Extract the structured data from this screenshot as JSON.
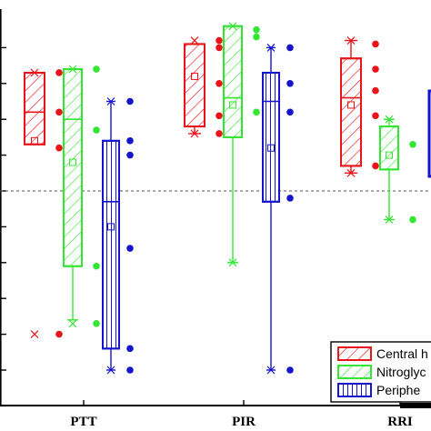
{
  "chart_data": {
    "type": "box",
    "categories": [
      "PTT",
      "PIR",
      "RRI"
    ],
    "reference_line": 0,
    "y_range": [
      -6,
      4.6
    ],
    "y_ticks": [
      -6,
      -5,
      -4,
      -3,
      -2,
      -1,
      0,
      1,
      2,
      3,
      4
    ],
    "grid": false,
    "legend_position": "bottom-right",
    "series": [
      {
        "name": "Central hypovolemia",
        "legend_label": "Central h",
        "color": "#e8141a",
        "hatch": "diagonal",
        "boxes": [
          {
            "category": "PTT",
            "q1": 1.3,
            "median": 2.2,
            "q3": 3.3,
            "mean": 1.4,
            "whisker_low": 1.3,
            "whisker_high": 3.3,
            "extremes": [
              3.3,
              -4.0
            ],
            "outliers": [
              3.3,
              2.2,
              1.2,
              -4.0
            ]
          },
          {
            "category": "PIR",
            "q1": 1.8,
            "median": null,
            "q3": 4.1,
            "mean": 3.2,
            "whisker_low": 1.6,
            "whisker_high": 4.1,
            "extremes": [
              4.2,
              1.6
            ],
            "outliers": [
              4.2,
              4.0,
              3.0,
              2.1,
              1.6
            ]
          },
          {
            "category": "RRI",
            "q1": 0.7,
            "median": 2.6,
            "q3": 3.7,
            "mean": 2.4,
            "whisker_low": 0.5,
            "whisker_high": 4.2,
            "extremes": [
              4.2,
              0.5
            ],
            "outliers": [
              4.1,
              3.4,
              2.8,
              2.1,
              0.7
            ]
          }
        ]
      },
      {
        "name": "Nitroglycerin",
        "legend_label": "Nitroglyc",
        "color": "#33e633",
        "hatch": "diagonal",
        "boxes": [
          {
            "category": "PTT",
            "q1": -2.1,
            "median": 2.0,
            "q3": 3.4,
            "mean": 0.8,
            "whisker_low": -3.6,
            "whisker_high": 3.4,
            "extremes": [
              3.4,
              -3.7
            ],
            "outliers": [
              3.4,
              1.7,
              -2.1,
              -3.7
            ]
          },
          {
            "category": "PIR",
            "q1": 1.5,
            "median": 2.6,
            "q3": 4.6,
            "mean": 2.4,
            "whisker_low": -2.0,
            "whisker_high": 4.6,
            "extremes": [
              4.6,
              -2.0
            ],
            "outliers": [
              4.5,
              4.3,
              2.2
            ]
          },
          {
            "category": "RRI",
            "q1": 0.6,
            "median": null,
            "q3": 1.8,
            "mean": 1.0,
            "whisker_low": -0.8,
            "whisker_high": 2.0,
            "extremes": [
              2.0,
              -0.8
            ],
            "outliers": [
              1.3,
              -0.8
            ]
          }
        ]
      },
      {
        "name": "Peripheral",
        "legend_label": "Periphe",
        "color": "#1414cc",
        "hatch": "vertical",
        "boxes": [
          {
            "category": "PTT",
            "q1": -4.4,
            "median": -0.3,
            "q3": 1.4,
            "mean": -1.0,
            "whisker_low": -5.0,
            "whisker_high": 2.5,
            "extremes": [
              2.5,
              -5.0
            ],
            "outliers": [
              2.5,
              1.4,
              1.0,
              -1.6,
              -4.4,
              -5.0
            ]
          },
          {
            "category": "PIR",
            "q1": -0.3,
            "median": 2.5,
            "q3": 3.3,
            "mean": 1.2,
            "whisker_low": -5.0,
            "whisker_high": 4.0,
            "extremes": [
              4.0,
              -5.0
            ],
            "outliers": [
              4.0,
              3.0,
              2.2,
              -0.2,
              -5.0
            ]
          }
        ]
      }
    ],
    "legend_entries": [
      "Central h",
      "Nitroglyc",
      "Periphe"
    ]
  }
}
